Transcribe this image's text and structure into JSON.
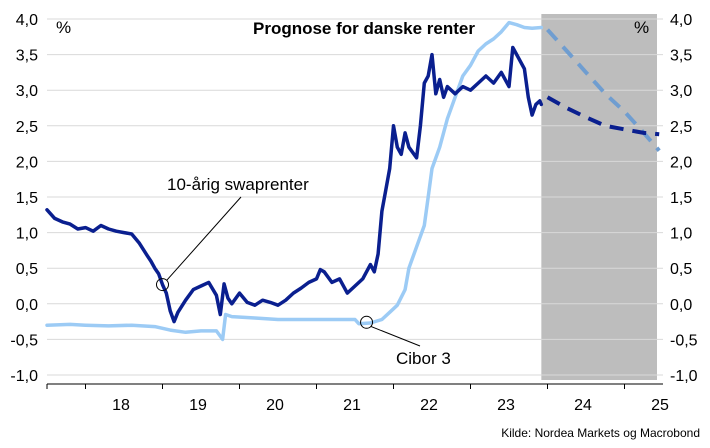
{
  "chart_data": {
    "type": "line",
    "title": "Prognose for danske renter",
    "ylabel_left": "%",
    "ylabel_right": "%",
    "source": "Kilde: Nordea Markets og Macrobond",
    "ylim": [
      -1.0,
      4.0
    ],
    "xlim": [
      2017.5,
      2025.5
    ],
    "y_ticks": [
      "4,0",
      "3,5",
      "3,0",
      "2,5",
      "2,0",
      "1,5",
      "1,0",
      "0,5",
      "0,0",
      "-0,5",
      "-1,0"
    ],
    "y_tick_values": [
      4.0,
      3.5,
      3.0,
      2.5,
      2.0,
      1.5,
      1.0,
      0.5,
      0.0,
      -0.5,
      -1.0
    ],
    "x_ticks": [
      "18",
      "19",
      "20",
      "21",
      "22",
      "23",
      "24",
      "25"
    ],
    "x_tick_values": [
      2018,
      2019,
      2020,
      2021,
      2022,
      2023,
      2024,
      2025
    ],
    "grid": true,
    "forecast_shading": {
      "from": 2023.92,
      "to": 2025.5,
      "color": "#bdbdbd"
    },
    "annotations": [
      {
        "text": "10-årig swaprenter",
        "x": 2019.0,
        "y": 0.27
      },
      {
        "text": "Cibor 3",
        "x": 2021.65,
        "y": -0.26
      }
    ],
    "series": [
      {
        "name": "10-årig swaprenter",
        "color": "#0a1f8f",
        "style": "solid",
        "points": [
          [
            2017.5,
            1.32
          ],
          [
            2017.6,
            1.2
          ],
          [
            2017.7,
            1.15
          ],
          [
            2017.8,
            1.12
          ],
          [
            2017.9,
            1.05
          ],
          [
            2018.0,
            1.07
          ],
          [
            2018.1,
            1.02
          ],
          [
            2018.2,
            1.1
          ],
          [
            2018.3,
            1.05
          ],
          [
            2018.4,
            1.02
          ],
          [
            2018.5,
            1.0
          ],
          [
            2018.6,
            0.98
          ],
          [
            2018.7,
            0.85
          ],
          [
            2018.8,
            0.68
          ],
          [
            2018.85,
            0.6
          ],
          [
            2018.9,
            0.5
          ],
          [
            2018.95,
            0.42
          ],
          [
            2019.0,
            0.27
          ],
          [
            2019.05,
            0.15
          ],
          [
            2019.1,
            -0.1
          ],
          [
            2019.15,
            -0.25
          ],
          [
            2019.2,
            -0.12
          ],
          [
            2019.3,
            0.05
          ],
          [
            2019.4,
            0.2
          ],
          [
            2019.5,
            0.25
          ],
          [
            2019.6,
            0.3
          ],
          [
            2019.7,
            0.12
          ],
          [
            2019.75,
            -0.15
          ],
          [
            2019.8,
            0.28
          ],
          [
            2019.85,
            0.08
          ],
          [
            2019.9,
            0.0
          ],
          [
            2020.0,
            0.15
          ],
          [
            2020.1,
            0.02
          ],
          [
            2020.2,
            -0.02
          ],
          [
            2020.3,
            0.05
          ],
          [
            2020.4,
            0.02
          ],
          [
            2020.5,
            -0.02
          ],
          [
            2020.6,
            0.05
          ],
          [
            2020.7,
            0.15
          ],
          [
            2020.8,
            0.22
          ],
          [
            2020.9,
            0.3
          ],
          [
            2021.0,
            0.35
          ],
          [
            2021.05,
            0.48
          ],
          [
            2021.1,
            0.45
          ],
          [
            2021.2,
            0.3
          ],
          [
            2021.3,
            0.35
          ],
          [
            2021.4,
            0.15
          ],
          [
            2021.5,
            0.25
          ],
          [
            2021.6,
            0.35
          ],
          [
            2021.7,
            0.55
          ],
          [
            2021.75,
            0.45
          ],
          [
            2021.8,
            0.7
          ],
          [
            2021.85,
            1.3
          ],
          [
            2021.9,
            1.6
          ],
          [
            2021.95,
            1.9
          ],
          [
            2022.0,
            2.5
          ],
          [
            2022.05,
            2.2
          ],
          [
            2022.1,
            2.1
          ],
          [
            2022.15,
            2.4
          ],
          [
            2022.2,
            2.2
          ],
          [
            2022.3,
            2.05
          ],
          [
            2022.35,
            2.5
          ],
          [
            2022.4,
            3.1
          ],
          [
            2022.45,
            3.2
          ],
          [
            2022.5,
            3.5
          ],
          [
            2022.55,
            2.95
          ],
          [
            2022.6,
            3.15
          ],
          [
            2022.65,
            2.9
          ],
          [
            2022.7,
            3.05
          ],
          [
            2022.8,
            2.95
          ],
          [
            2022.9,
            3.05
          ],
          [
            2023.0,
            3.0
          ],
          [
            2023.1,
            3.1
          ],
          [
            2023.2,
            3.2
          ],
          [
            2023.3,
            3.1
          ],
          [
            2023.4,
            3.25
          ],
          [
            2023.5,
            3.05
          ],
          [
            2023.55,
            3.6
          ],
          [
            2023.6,
            3.5
          ],
          [
            2023.7,
            3.3
          ],
          [
            2023.75,
            2.9
          ],
          [
            2023.8,
            2.65
          ],
          [
            2023.85,
            2.8
          ],
          [
            2023.9,
            2.85
          ],
          [
            2023.92,
            2.8
          ]
        ]
      },
      {
        "name": "Cibor 3",
        "color": "#9ccbf5",
        "style": "solid",
        "points": [
          [
            2017.5,
            -0.3
          ],
          [
            2017.8,
            -0.29
          ],
          [
            2018.0,
            -0.3
          ],
          [
            2018.3,
            -0.31
          ],
          [
            2018.6,
            -0.3
          ],
          [
            2018.9,
            -0.32
          ],
          [
            2019.1,
            -0.37
          ],
          [
            2019.3,
            -0.4
          ],
          [
            2019.5,
            -0.38
          ],
          [
            2019.7,
            -0.38
          ],
          [
            2019.78,
            -0.5
          ],
          [
            2019.82,
            -0.15
          ],
          [
            2019.9,
            -0.18
          ],
          [
            2020.2,
            -0.2
          ],
          [
            2020.5,
            -0.22
          ],
          [
            2020.8,
            -0.22
          ],
          [
            2021.0,
            -0.22
          ],
          [
            2021.3,
            -0.22
          ],
          [
            2021.5,
            -0.22
          ],
          [
            2021.55,
            -0.28
          ],
          [
            2021.7,
            -0.27
          ],
          [
            2021.85,
            -0.22
          ],
          [
            2021.95,
            -0.12
          ],
          [
            2022.05,
            -0.02
          ],
          [
            2022.15,
            0.2
          ],
          [
            2022.2,
            0.5
          ],
          [
            2022.3,
            0.8
          ],
          [
            2022.4,
            1.1
          ],
          [
            2022.45,
            1.5
          ],
          [
            2022.5,
            1.9
          ],
          [
            2022.6,
            2.2
          ],
          [
            2022.7,
            2.6
          ],
          [
            2022.8,
            2.9
          ],
          [
            2022.9,
            3.2
          ],
          [
            2023.0,
            3.35
          ],
          [
            2023.1,
            3.55
          ],
          [
            2023.2,
            3.65
          ],
          [
            2023.3,
            3.72
          ],
          [
            2023.4,
            3.82
          ],
          [
            2023.5,
            3.95
          ],
          [
            2023.6,
            3.92
          ],
          [
            2023.7,
            3.88
          ],
          [
            2023.8,
            3.87
          ],
          [
            2023.92,
            3.88
          ]
        ]
      },
      {
        "name": "10-årig swaprenter prognose",
        "color": "#0a1f8f",
        "style": "dashed",
        "points": [
          [
            2024.0,
            2.9
          ],
          [
            2024.25,
            2.75
          ],
          [
            2024.5,
            2.62
          ],
          [
            2024.75,
            2.5
          ],
          [
            2025.0,
            2.45
          ],
          [
            2025.25,
            2.4
          ],
          [
            2025.45,
            2.38
          ]
        ]
      },
      {
        "name": "Cibor 3 prognose",
        "color": "#6f9dd0",
        "style": "dashed",
        "points": [
          [
            2024.0,
            3.85
          ],
          [
            2024.25,
            3.55
          ],
          [
            2024.5,
            3.25
          ],
          [
            2024.75,
            2.95
          ],
          [
            2025.0,
            2.7
          ],
          [
            2025.25,
            2.4
          ],
          [
            2025.45,
            2.15
          ]
        ]
      }
    ]
  }
}
